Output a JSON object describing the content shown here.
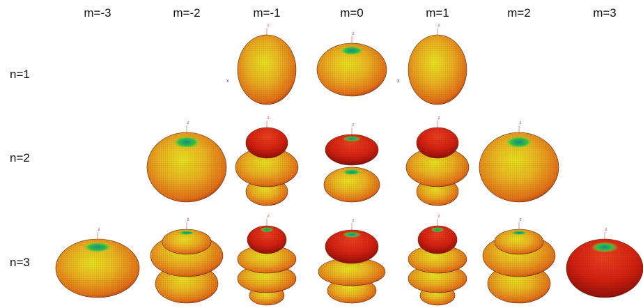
{
  "columns": [
    "m=-3",
    "m=-2",
    "m=-1",
    "m=0",
    "m=1",
    "m=2",
    "m=3"
  ],
  "rows": [
    {
      "label": "n=1",
      "plots": [
        {
          "labels": [
            "z",
            "x"
          ]
        },
        {
          "labels": [
            "z"
          ]
        },
        {
          "labels": [
            "z",
            "x"
          ]
        }
      ]
    },
    {
      "label": "n=2",
      "plots": [
        {
          "labels": [
            "z"
          ]
        },
        {
          "labels": [
            "z"
          ]
        },
        {
          "labels": [
            "z"
          ]
        },
        {
          "labels": [
            "z"
          ]
        },
        {
          "labels": [
            "z"
          ]
        }
      ]
    },
    {
      "label": "n=3",
      "plots": [
        {
          "labels": [
            "z"
          ]
        },
        {
          "labels": [
            "z"
          ]
        },
        {
          "labels": [
            "z"
          ]
        },
        {
          "labels": [
            "z"
          ]
        },
        {
          "labels": [
            "z"
          ]
        },
        {
          "labels": [
            "z"
          ]
        },
        {
          "labels": [
            "z"
          ]
        }
      ]
    }
  ]
}
